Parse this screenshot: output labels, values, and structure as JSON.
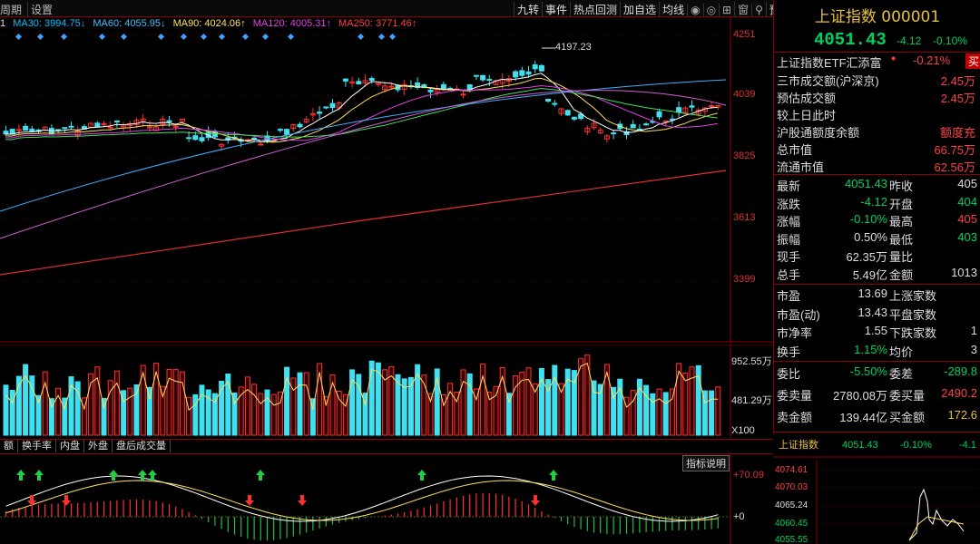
{
  "toolbar": {
    "left_items": [
      "周期",
      "设置"
    ],
    "right_items": [
      "九转",
      "事件",
      "热点回测",
      "加自选",
      "均线"
    ],
    "icons": [
      "eye-icon",
      "eye-icon",
      "lock-icon",
      "window-icon",
      "search-icon",
      "forecast"
    ],
    "forecast_label": "预测",
    "hide_arrow": "▶"
  },
  "ma_line": [
    {
      "label": "MA30: 3994.75↓",
      "color": "#00c0ff"
    },
    {
      "label": "MA60: 4055.95↓",
      "color": "#40c0ff"
    },
    {
      "label": "MA90: 4024.06↑",
      "color": "#ffe060"
    },
    {
      "label": "MA120: 4005.31↑",
      "color": "#e040e0"
    },
    {
      "label": "MA250: 3771.46↑",
      "color": "#ff4040"
    }
  ],
  "price_axis": [
    "4251",
    "4039",
    "3825",
    "3613",
    "3399"
  ],
  "peak_label": "4197.23",
  "vol_axis": [
    "952.55万",
    "481.29万",
    "X100"
  ],
  "ind_tabs": [
    "额",
    "换手率",
    "内盘",
    "外盘",
    "盘后成交量"
  ],
  "ind_help": "指标说明",
  "ind_axis": [
    "+70.09",
    "+0"
  ],
  "right_panel": {
    "title": "上证指数 000001",
    "price": "4051.43",
    "change": "-4.12",
    "change_pct": "-0.10%",
    "etf_label": "上证指数ETF汇添富",
    "etf_pct": "-0.21%",
    "buy_btn": "买",
    "rows1": [
      {
        "label": "三市成交额(沪深京)",
        "value": "2.45万"
      },
      {
        "label": "预估成交额",
        "value": "2.45万"
      },
      {
        "label": "较上日此时",
        "value": ""
      },
      {
        "label": "沪股通额度余额",
        "value": "额度充"
      },
      {
        "label": "总市值",
        "value": "66.75万"
      },
      {
        "label": "流通市值",
        "value": "62.56万"
      }
    ],
    "rows2": [
      {
        "l1": "最新",
        "v1": "4051.43",
        "c1": "g",
        "l2": "昨收",
        "v2": "405",
        "c2": "w"
      },
      {
        "l1": "涨跌",
        "v1": "-4.12",
        "c1": "g",
        "l2": "开盘",
        "v2": "404",
        "c2": "g"
      },
      {
        "l1": "涨幅",
        "v1": "-0.10%",
        "c1": "g",
        "l2": "最高",
        "v2": "405",
        "c2": "r"
      },
      {
        "l1": "振幅",
        "v1": "0.50%",
        "c1": "w",
        "l2": "最低",
        "v2": "403",
        "c2": "g"
      },
      {
        "l1": "现手",
        "v1": "62.35万",
        "c1": "w",
        "l2": "量比",
        "v2": "",
        "c2": "w"
      },
      {
        "l1": "总手",
        "v1": "5.49亿",
        "c1": "w",
        "l2": "金额",
        "v2": "1013",
        "c2": "w"
      }
    ],
    "rows3": [
      {
        "label": "市盈",
        "value": "13.69",
        "l2": "上涨家数",
        "v2": ""
      },
      {
        "label": "市盈(动)",
        "value": "13.43",
        "l2": "平盘家数",
        "v2": ""
      },
      {
        "label": "市净率",
        "value": "1.55",
        "l2": "下跌家数",
        "v2": "1"
      },
      {
        "label": "换手",
        "value": "1.15%",
        "l2": "均价",
        "v2": "3"
      }
    ],
    "rows4": [
      {
        "l1": "委比",
        "v1": "-5.50%",
        "c1": "g",
        "l2": "委差",
        "v2": "-289.8",
        "c2": "g"
      },
      {
        "l1": "委卖量",
        "v1": "2780.08万",
        "c1": "w",
        "l2": "委买量",
        "v2": "2490.2",
        "c2": "r"
      },
      {
        "l1": "卖金额",
        "v1": "139.44亿",
        "c1": "w",
        "l2": "买金额",
        "v2": "172.6",
        "c2": "y"
      }
    ],
    "mini": {
      "name": "上证指数",
      "price": "4051.43",
      "pct": "-0.10%",
      "chg": "-4.1",
      "axis": [
        "4074.61",
        "4070.03",
        "4065.24",
        "4060.45",
        "4055.55"
      ]
    }
  }
}
